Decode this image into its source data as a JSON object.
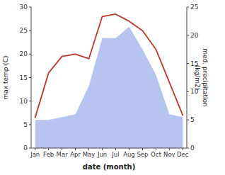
{
  "chart_data": {
    "type": "line",
    "x_label": "date (month)",
    "y_label": "max temp (C)",
    "y2_label": "med. precipitation\n(kg/m2)",
    "categories": [
      "Jan",
      "Feb",
      "Mar",
      "Apr",
      "May",
      "Jun",
      "Jul",
      "Aug",
      "Sep",
      "Oct",
      "Nov",
      "Dec"
    ],
    "series": [
      {
        "type": "area",
        "axis": "y2",
        "color": "#b8c4f0",
        "values": [
          5.0,
          5.0,
          5.5,
          6.0,
          11.0,
          19.5,
          19.5,
          21.5,
          17.5,
          13.0,
          6.0,
          5.5
        ]
      },
      {
        "type": "line",
        "color": "#c0392b",
        "values": [
          6.5,
          16.0,
          19.5,
          20.0,
          19.0,
          28.0,
          28.5,
          27.0,
          25.0,
          21.0,
          14.0,
          7.0
        ]
      }
    ],
    "ylim": [
      0,
      30
    ],
    "yticks": [
      0,
      5,
      10,
      15,
      20,
      25,
      30
    ],
    "y2lim": [
      0,
      25
    ],
    "y2ticks": [
      0,
      5,
      10,
      15,
      20,
      25
    ],
    "grid": false
  }
}
